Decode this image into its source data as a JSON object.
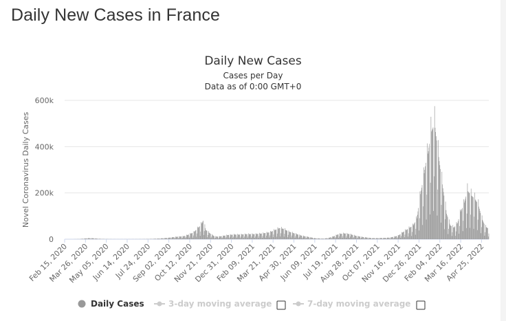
{
  "page": {
    "title": "Daily New Cases in France"
  },
  "chart_data": {
    "type": "bar",
    "title": "Daily New Cases",
    "subtitle_lines": [
      "Cases per Day",
      "Data as of 0:00 GMT+0"
    ],
    "ylabel": "Novel Coronavirus Daily Cases",
    "xlabel": "",
    "ylim": [
      0,
      600000
    ],
    "y_ticks": [
      {
        "value": 0,
        "label": "0"
      },
      {
        "value": 200000,
        "label": "200k"
      },
      {
        "value": 400000,
        "label": "400k"
      },
      {
        "value": 600000,
        "label": "600k"
      }
    ],
    "x_range": [
      "2020-02-15",
      "2022-05-09"
    ],
    "x_tick_labels": [
      {
        "date": "2020-02-15",
        "label": "Feb 15, 2020"
      },
      {
        "date": "2020-03-26",
        "label": "Mar 26, 2020"
      },
      {
        "date": "2020-05-05",
        "label": "May 05, 2020"
      },
      {
        "date": "2020-06-14",
        "label": "Jun 14, 2020"
      },
      {
        "date": "2020-07-24",
        "label": "Jul 24, 2020"
      },
      {
        "date": "2020-09-02",
        "label": "Sep 02, 2020"
      },
      {
        "date": "2020-10-12",
        "label": "Oct 12, 2020"
      },
      {
        "date": "2020-11-21",
        "label": "Nov 21, 2020"
      },
      {
        "date": "2020-12-31",
        "label": "Dec 31, 2020"
      },
      {
        "date": "2021-02-09",
        "label": "Feb 09, 2021"
      },
      {
        "date": "2021-03-21",
        "label": "Mar 21, 2021"
      },
      {
        "date": "2021-04-30",
        "label": "Apr 30, 2021"
      },
      {
        "date": "2021-06-09",
        "label": "Jun 09, 2021"
      },
      {
        "date": "2021-07-19",
        "label": "Jul 19, 2021"
      },
      {
        "date": "2021-08-28",
        "label": "Aug 28, 2021"
      },
      {
        "date": "2021-10-07",
        "label": "Oct 07, 2021"
      },
      {
        "date": "2021-11-16",
        "label": "Nov 16, 2021"
      },
      {
        "date": "2021-12-26",
        "label": "Dec 26, 2021"
      },
      {
        "date": "2022-02-04",
        "label": "Feb 04, 2022"
      },
      {
        "date": "2022-03-16",
        "label": "Mar 16, 2022"
      },
      {
        "date": "2022-04-25",
        "label": "Apr 25, 2022"
      }
    ],
    "series": [
      {
        "name": "Daily Cases",
        "color": "#999999",
        "points": [
          [
            "2020-02-15",
            0
          ],
          [
            "2020-03-01",
            100
          ],
          [
            "2020-03-15",
            800
          ],
          [
            "2020-03-25",
            3000
          ],
          [
            "2020-04-01",
            4500
          ],
          [
            "2020-04-10",
            4000
          ],
          [
            "2020-04-20",
            2000
          ],
          [
            "2020-05-01",
            1000
          ],
          [
            "2020-05-15",
            500
          ],
          [
            "2020-06-01",
            300
          ],
          [
            "2020-06-15",
            400
          ],
          [
            "2020-07-01",
            500
          ],
          [
            "2020-07-15",
            700
          ],
          [
            "2020-08-01",
            1500
          ],
          [
            "2020-08-15",
            3000
          ],
          [
            "2020-09-01",
            6000
          ],
          [
            "2020-09-15",
            10000
          ],
          [
            "2020-10-01",
            13000
          ],
          [
            "2020-10-10",
            20000
          ],
          [
            "2020-10-20",
            30000
          ],
          [
            "2020-10-26",
            45000
          ],
          [
            "2020-11-02",
            60000
          ],
          [
            "2020-11-07",
            80000
          ],
          [
            "2020-11-12",
            40000
          ],
          [
            "2020-11-20",
            25000
          ],
          [
            "2020-11-28",
            13000
          ],
          [
            "2020-12-05",
            11000
          ],
          [
            "2020-12-15",
            14000
          ],
          [
            "2020-12-24",
            18000
          ],
          [
            "2021-01-05",
            20000
          ],
          [
            "2021-01-15",
            20000
          ],
          [
            "2021-01-31",
            22000
          ],
          [
            "2021-02-15",
            22000
          ],
          [
            "2021-03-01",
            25000
          ],
          [
            "2021-03-15",
            30000
          ],
          [
            "2021-03-25",
            40000
          ],
          [
            "2021-04-02",
            48000
          ],
          [
            "2021-04-10",
            45000
          ],
          [
            "2021-04-20",
            33000
          ],
          [
            "2021-05-01",
            25000
          ],
          [
            "2021-05-15",
            15000
          ],
          [
            "2021-06-01",
            8000
          ],
          [
            "2021-06-10",
            4000
          ],
          [
            "2021-06-25",
            2500
          ],
          [
            "2021-07-05",
            5000
          ],
          [
            "2021-07-15",
            12000
          ],
          [
            "2021-07-25",
            22000
          ],
          [
            "2021-08-05",
            25000
          ],
          [
            "2021-08-15",
            22000
          ],
          [
            "2021-08-28",
            14000
          ],
          [
            "2021-09-10",
            9000
          ],
          [
            "2021-09-25",
            5000
          ],
          [
            "2021-10-07",
            4500
          ],
          [
            "2021-10-20",
            5500
          ],
          [
            "2021-11-01",
            7000
          ],
          [
            "2021-11-16",
            15000
          ],
          [
            "2021-11-25",
            30000
          ],
          [
            "2021-12-05",
            45000
          ],
          [
            "2021-12-15",
            60000
          ],
          [
            "2021-12-22",
            90000
          ],
          [
            "2021-12-26",
            150000
          ],
          [
            "2021-12-30",
            210000
          ],
          [
            "2022-01-04",
            270000
          ],
          [
            "2022-01-08",
            330000
          ],
          [
            "2022-01-13",
            380000
          ],
          [
            "2022-01-18",
            460000
          ],
          [
            "2022-01-25",
            500000
          ],
          [
            "2022-01-31",
            390000
          ],
          [
            "2022-02-04",
            320000
          ],
          [
            "2022-02-10",
            220000
          ],
          [
            "2022-02-17",
            110000
          ],
          [
            "2022-02-24",
            60000
          ],
          [
            "2022-03-03",
            50000
          ],
          [
            "2022-03-10",
            70000
          ],
          [
            "2022-03-16",
            120000
          ],
          [
            "2022-03-22",
            150000
          ],
          [
            "2022-03-29",
            210000
          ],
          [
            "2022-04-05",
            190000
          ],
          [
            "2022-04-12",
            175000
          ],
          [
            "2022-04-19",
            150000
          ],
          [
            "2022-04-25",
            95000
          ],
          [
            "2022-05-02",
            55000
          ],
          [
            "2022-05-09",
            45000
          ]
        ]
      }
    ],
    "legend": [
      {
        "label": "Daily Cases",
        "active": true,
        "color": "#999999"
      },
      {
        "label": "3-day moving average",
        "active": false,
        "color": "#cccccc"
      },
      {
        "label": "7-day moving average",
        "active": false,
        "color": "#cccccc"
      }
    ],
    "legend_placement": "bottom-center",
    "grid": true
  }
}
